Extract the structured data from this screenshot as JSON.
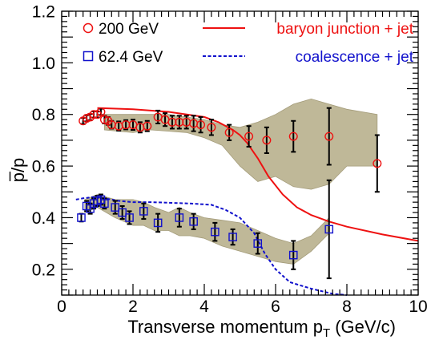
{
  "chart_data": {
    "type": "scatter",
    "title": "",
    "xlabel": "Transverse momentum p",
    "xlabel_sub": "T",
    "xlabel_units": "(GeV/c)",
    "ylabel": "p/p",
    "xlim": [
      0,
      10
    ],
    "ylim": [
      0.1,
      1.2
    ],
    "xticks": [
      "0",
      "2",
      "4",
      "6",
      "8",
      "10"
    ],
    "yticks": [
      "0.2",
      "0.4",
      "0.6",
      "0.8",
      "1.0",
      "1.2"
    ],
    "grid": false,
    "legend_placement": "top",
    "colors": {
      "band": "#bfb898",
      "band_edge": "#a49c7a",
      "series_200": "#ee1111",
      "series_624": "#1111cc",
      "errorbars": "#000000"
    },
    "series": [
      {
        "name": "200 GeV",
        "marker": "open-circle",
        "x": [
          0.6,
          0.7,
          0.8,
          0.9,
          1.0,
          1.1,
          1.2,
          1.3,
          1.4,
          1.6,
          1.8,
          2.0,
          2.2,
          2.4,
          2.7,
          2.9,
          3.1,
          3.3,
          3.5,
          3.7,
          3.9,
          4.2,
          4.7,
          5.25,
          5.75,
          6.5,
          7.5,
          8.85
        ],
        "y": [
          0.775,
          0.785,
          0.79,
          0.8,
          0.8,
          0.81,
          0.78,
          0.775,
          0.76,
          0.755,
          0.76,
          0.76,
          0.75,
          0.755,
          0.79,
          0.78,
          0.77,
          0.77,
          0.77,
          0.765,
          0.76,
          0.75,
          0.73,
          0.715,
          0.7,
          0.715,
          0.715,
          0.61
        ],
        "yerr": [
          0.012,
          0.012,
          0.012,
          0.012,
          0.012,
          0.012,
          0.015,
          0.015,
          0.015,
          0.018,
          0.018,
          0.02,
          0.02,
          0.02,
          0.025,
          0.025,
          0.025,
          0.025,
          0.025,
          0.03,
          0.03,
          0.03,
          0.03,
          0.04,
          0.05,
          0.06,
          0.11,
          0.11
        ]
      },
      {
        "name": "62.4 GeV",
        "marker": "open-square",
        "x": [
          0.55,
          0.7,
          0.8,
          0.9,
          1.0,
          1.1,
          1.2,
          1.5,
          1.7,
          1.9,
          2.3,
          2.7,
          3.3,
          3.7,
          4.3,
          4.8,
          5.5,
          6.5,
          7.5
        ],
        "y": [
          0.4,
          0.445,
          0.435,
          0.455,
          0.465,
          0.47,
          0.455,
          0.44,
          0.42,
          0.4,
          0.425,
          0.38,
          0.4,
          0.385,
          0.345,
          0.325,
          0.3,
          0.255,
          0.355
        ],
        "yerr": [
          0.015,
          0.02,
          0.02,
          0.02,
          0.02,
          0.02,
          0.02,
          0.025,
          0.025,
          0.025,
          0.03,
          0.035,
          0.035,
          0.03,
          0.035,
          0.03,
          0.04,
          0.055,
          0.19
        ]
      },
      {
        "name": "baryon junction + jet",
        "line": "solid",
        "x": [
          1.0,
          2.0,
          3.0,
          4.0,
          4.4,
          4.8,
          5.0,
          5.2,
          5.5,
          5.8,
          6.2,
          6.6,
          7.0,
          7.5,
          8.0,
          9.0,
          10.0
        ],
        "y": [
          0.825,
          0.82,
          0.81,
          0.79,
          0.77,
          0.74,
          0.72,
          0.69,
          0.63,
          0.56,
          0.49,
          0.44,
          0.41,
          0.385,
          0.365,
          0.335,
          0.31
        ]
      },
      {
        "name": "coalescence + jet",
        "line": "dashed",
        "x": [
          0.4,
          0.6,
          0.9,
          1.2,
          1.6,
          2.0,
          2.5,
          3.0,
          3.6,
          4.2,
          4.6,
          5.0,
          5.4,
          5.7,
          6.0,
          6.4,
          7.0,
          7.6,
          8.0
        ],
        "y": [
          0.47,
          0.475,
          0.48,
          0.475,
          0.465,
          0.46,
          0.46,
          0.458,
          0.455,
          0.45,
          0.43,
          0.4,
          0.34,
          0.26,
          0.2,
          0.15,
          0.125,
          0.105,
          0.1
        ]
      }
    ],
    "bands": [
      {
        "for": "200 GeV",
        "x": [
          1.2,
          2.0,
          2.5,
          3.0,
          3.5,
          4.0,
          4.5,
          5.0,
          5.5,
          6.0,
          6.5,
          7.0,
          7.5,
          8.0,
          8.85
        ],
        "lower": [
          0.74,
          0.73,
          0.74,
          0.735,
          0.73,
          0.71,
          0.68,
          0.6,
          0.54,
          0.56,
          0.52,
          0.51,
          0.53,
          0.6,
          0.6
        ],
        "upper": [
          0.8,
          0.8,
          0.8,
          0.8,
          0.79,
          0.78,
          0.76,
          0.75,
          0.77,
          0.8,
          0.84,
          0.86,
          0.84,
          0.82,
          0.8
        ]
      },
      {
        "for": "62.4 GeV",
        "x": [
          0.65,
          1.0,
          1.5,
          2.0,
          2.3,
          2.6,
          3.0,
          3.3,
          3.6,
          4.0,
          4.5,
          5.0,
          5.5,
          6.0,
          6.5,
          7.0,
          7.5
        ],
        "lower": [
          0.42,
          0.44,
          0.4,
          0.37,
          0.37,
          0.35,
          0.35,
          0.33,
          0.33,
          0.32,
          0.29,
          0.27,
          0.25,
          0.23,
          0.22,
          0.27,
          0.34
        ],
        "upper": [
          0.47,
          0.49,
          0.47,
          0.47,
          0.46,
          0.44,
          0.42,
          0.44,
          0.42,
          0.4,
          0.39,
          0.38,
          0.35,
          0.32,
          0.3,
          0.33,
          0.4
        ]
      }
    ],
    "legend": [
      {
        "label": "200 GeV",
        "marker": "open-circle",
        "color": "#ee1111"
      },
      {
        "label": "62.4 GeV",
        "marker": "open-square",
        "color": "#1111cc"
      },
      {
        "label": "baryon junction + jet",
        "line": "solid",
        "color": "#ee1111"
      },
      {
        "label": "coalescence + jet",
        "line": "dashed",
        "color": "#1111cc"
      }
    ]
  }
}
